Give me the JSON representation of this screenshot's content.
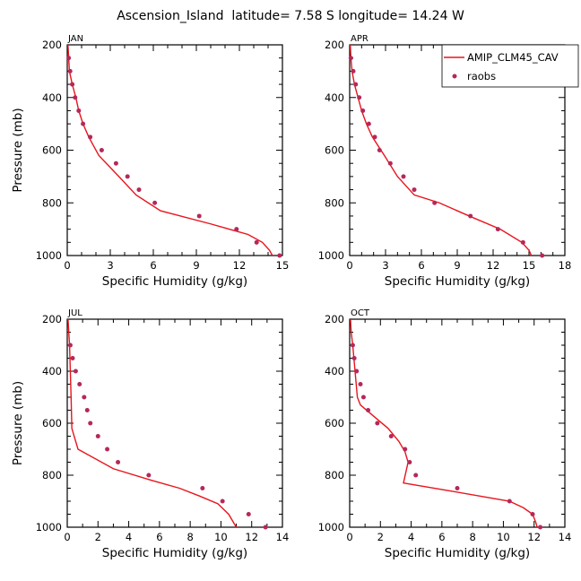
{
  "figure": {
    "title": "Ascension_Island  latitude= 7.58 S longitude= 14.24 W"
  },
  "legend": {
    "model_label": "AMIP_CLM45_CAV",
    "obs_label": "raobs",
    "model_color": "#e8141c",
    "obs_color": "#b5285a",
    "placement": "top-right of APR panel"
  },
  "chart_data": [
    {
      "type": "line",
      "panel": "JAN",
      "xlabel": "Specific Humidity (g/kg)",
      "ylabel": "Pressure (mb)",
      "xlim": [
        0,
        15
      ],
      "ylim": [
        1000,
        200
      ],
      "xticks": [
        0,
        3,
        6,
        9,
        12,
        15
      ],
      "yticks": [
        200,
        400,
        600,
        800,
        1000
      ],
      "grid": false,
      "series": [
        {
          "name": "AMIP_CLM45_CAV",
          "style": "line",
          "points": [
            [
              0.05,
              200
            ],
            [
              0.1,
              250
            ],
            [
              0.15,
              300
            ],
            [
              0.35,
              350
            ],
            [
              0.6,
              400
            ],
            [
              0.8,
              450
            ],
            [
              1.1,
              500
            ],
            [
              1.5,
              550
            ],
            [
              2.2,
              620
            ],
            [
              3.6,
              700
            ],
            [
              4.8,
              770
            ],
            [
              6.5,
              830
            ],
            [
              10.0,
              880
            ],
            [
              12.6,
              920
            ],
            [
              13.6,
              950
            ],
            [
              14.1,
              980
            ],
            [
              14.3,
              1000
            ]
          ]
        },
        {
          "name": "raobs",
          "style": "markers",
          "points": [
            [
              0.1,
              250
            ],
            [
              0.2,
              300
            ],
            [
              0.35,
              350
            ],
            [
              0.55,
              400
            ],
            [
              0.8,
              450
            ],
            [
              1.1,
              500
            ],
            [
              1.6,
              550
            ],
            [
              2.4,
              600
            ],
            [
              3.4,
              650
            ],
            [
              4.2,
              700
            ],
            [
              5.0,
              750
            ],
            [
              6.1,
              800
            ],
            [
              9.2,
              850
            ],
            [
              11.8,
              900
            ],
            [
              13.2,
              950
            ],
            [
              14.8,
              1000
            ]
          ]
        }
      ]
    },
    {
      "type": "line",
      "panel": "APR",
      "xlabel": "Specific Humidity (g/kg)",
      "ylabel": "",
      "xlim": [
        0,
        18
      ],
      "ylim": [
        1000,
        200
      ],
      "xticks": [
        0,
        3,
        6,
        9,
        12,
        15,
        18
      ],
      "yticks": [
        200,
        400,
        600,
        800,
        1000
      ],
      "grid": false,
      "series": [
        {
          "name": "AMIP_CLM45_CAV",
          "style": "line",
          "points": [
            [
              0.05,
              200
            ],
            [
              0.1,
              250
            ],
            [
              0.2,
              300
            ],
            [
              0.4,
              350
            ],
            [
              0.7,
              400
            ],
            [
              1.0,
              450
            ],
            [
              1.4,
              500
            ],
            [
              1.9,
              550
            ],
            [
              2.9,
              620
            ],
            [
              4.0,
              700
            ],
            [
              5.4,
              770
            ],
            [
              7.5,
              800
            ],
            [
              10.0,
              850
            ],
            [
              12.6,
              900
            ],
            [
              14.4,
              950
            ],
            [
              15.0,
              980
            ],
            [
              15.2,
              1000
            ]
          ]
        },
        {
          "name": "raobs",
          "style": "markers",
          "points": [
            [
              0.1,
              250
            ],
            [
              0.3,
              300
            ],
            [
              0.5,
              350
            ],
            [
              0.8,
              400
            ],
            [
              1.1,
              450
            ],
            [
              1.6,
              500
            ],
            [
              2.1,
              550
            ],
            [
              2.5,
              600
            ],
            [
              3.4,
              650
            ],
            [
              4.5,
              700
            ],
            [
              5.4,
              750
            ],
            [
              7.1,
              800
            ],
            [
              10.1,
              850
            ],
            [
              12.4,
              900
            ],
            [
              14.5,
              950
            ],
            [
              16.1,
              1000
            ]
          ]
        }
      ]
    },
    {
      "type": "line",
      "panel": "JUL",
      "xlabel": "Specific Humidity (g/kg)",
      "ylabel": "Pressure (mb)",
      "xlim": [
        0,
        14
      ],
      "ylim": [
        1000,
        200
      ],
      "xticks": [
        0,
        2,
        4,
        6,
        8,
        10,
        12,
        14
      ],
      "yticks": [
        200,
        400,
        600,
        800,
        1000
      ],
      "grid": false,
      "series": [
        {
          "name": "AMIP_CLM45_CAV",
          "style": "line",
          "points": [
            [
              0.05,
              200
            ],
            [
              0.1,
              250
            ],
            [
              0.15,
              300
            ],
            [
              0.2,
              400
            ],
            [
              0.25,
              500
            ],
            [
              0.3,
              620
            ],
            [
              0.7,
              700
            ],
            [
              3.0,
              775
            ],
            [
              5.5,
              820
            ],
            [
              7.3,
              850
            ],
            [
              8.6,
              880
            ],
            [
              9.8,
              910
            ],
            [
              10.5,
              950
            ],
            [
              10.9,
              990
            ],
            [
              11.0,
              1000
            ]
          ]
        },
        {
          "name": "raobs",
          "style": "markers",
          "points": [
            [
              0.2,
              300
            ],
            [
              0.35,
              350
            ],
            [
              0.55,
              400
            ],
            [
              0.8,
              450
            ],
            [
              1.1,
              500
            ],
            [
              1.3,
              550
            ],
            [
              1.5,
              600
            ],
            [
              2.0,
              650
            ],
            [
              2.6,
              700
            ],
            [
              3.3,
              750
            ],
            [
              5.3,
              800
            ],
            [
              8.8,
              850
            ],
            [
              10.1,
              900
            ],
            [
              11.8,
              950
            ],
            [
              12.9,
              1000
            ]
          ]
        }
      ]
    },
    {
      "type": "line",
      "panel": "OCT",
      "xlabel": "Specific Humidity (g/kg)",
      "ylabel": "",
      "xlim": [
        0,
        14
      ],
      "ylim": [
        1000,
        200
      ],
      "xticks": [
        0,
        2,
        4,
        6,
        8,
        10,
        12,
        14
      ],
      "yticks": [
        200,
        400,
        600,
        800,
        1000
      ],
      "grid": false,
      "series": [
        {
          "name": "AMIP_CLM45_CAV",
          "style": "line",
          "points": [
            [
              0.05,
              200
            ],
            [
              0.1,
              250
            ],
            [
              0.2,
              300
            ],
            [
              0.35,
              400
            ],
            [
              0.5,
              500
            ],
            [
              0.7,
              530
            ],
            [
              1.5,
              570
            ],
            [
              2.5,
              620
            ],
            [
              3.2,
              670
            ],
            [
              3.6,
              710
            ],
            [
              3.8,
              750
            ],
            [
              3.5,
              830
            ],
            [
              6.5,
              860
            ],
            [
              10.4,
              900
            ],
            [
              11.3,
              925
            ],
            [
              11.9,
              950
            ],
            [
              12.1,
              980
            ],
            [
              12.2,
              1000
            ]
          ]
        },
        {
          "name": "raobs",
          "style": "markers",
          "points": [
            [
              0.2,
              300
            ],
            [
              0.3,
              350
            ],
            [
              0.45,
              400
            ],
            [
              0.7,
              450
            ],
            [
              0.9,
              500
            ],
            [
              1.2,
              550
            ],
            [
              1.8,
              600
            ],
            [
              2.7,
              650
            ],
            [
              3.6,
              700
            ],
            [
              3.9,
              750
            ],
            [
              4.3,
              800
            ],
            [
              7.0,
              850
            ],
            [
              10.4,
              900
            ],
            [
              11.9,
              950
            ],
            [
              12.4,
              1000
            ]
          ]
        }
      ]
    }
  ]
}
